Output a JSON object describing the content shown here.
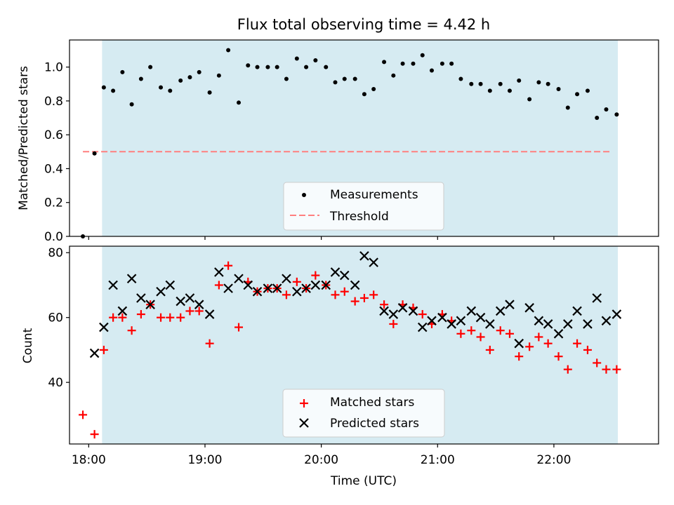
{
  "chart_data": {
    "title": "Flux total observing time = 4.42 h",
    "xlabel": "Time (UTC)",
    "x_unit": "hours since 18:00 UTC",
    "xlim": [
      -0.165,
      4.9
    ],
    "xticks": [
      0,
      1,
      2,
      3,
      4
    ],
    "xtick_labels": [
      "18:00",
      "19:00",
      "20:00",
      "21:00",
      "22:00"
    ],
    "shaded_span": [
      0.115,
      4.55
    ],
    "colors": {
      "span": "#add8e6",
      "threshold": "#ff7f7f",
      "matched": "#ff0000",
      "points": "#000000"
    },
    "top": {
      "type": "scatter",
      "ylabel": "Matched/Predicted stars",
      "ylim": [
        0,
        1.16
      ],
      "yticks": [
        0,
        0.2,
        0.4,
        0.6,
        0.8,
        1.0
      ],
      "ytick_labels": [
        "0.0",
        "0.2",
        "0.4",
        "0.6",
        "0.8",
        "1.0"
      ],
      "threshold": {
        "value": 0.5,
        "x_range": [
          -0.05,
          4.5
        ]
      },
      "legend": [
        "Measurements",
        "Threshold"
      ],
      "x": [
        -0.05,
        0.05,
        0.13,
        0.21,
        0.29,
        0.37,
        0.45,
        0.53,
        0.62,
        0.7,
        0.79,
        0.87,
        0.95,
        1.04,
        1.12,
        1.2,
        1.29,
        1.37,
        1.45,
        1.54,
        1.62,
        1.7,
        1.79,
        1.87,
        1.95,
        2.04,
        2.12,
        2.2,
        2.29,
        2.37,
        2.45,
        2.54,
        2.62,
        2.7,
        2.79,
        2.87,
        2.95,
        3.04,
        3.12,
        3.2,
        3.29,
        3.37,
        3.45,
        3.54,
        3.62,
        3.7,
        3.79,
        3.87,
        3.95,
        4.04,
        4.12,
        4.2,
        4.29,
        4.37,
        4.45,
        4.54
      ],
      "y": [
        0.0,
        0.49,
        0.88,
        0.86,
        0.97,
        0.78,
        0.93,
        1.0,
        0.88,
        0.86,
        0.92,
        0.94,
        0.97,
        0.85,
        0.95,
        1.1,
        0.79,
        1.01,
        1.0,
        1.0,
        1.0,
        0.93,
        1.05,
        1.0,
        1.04,
        1.0,
        0.91,
        0.93,
        0.93,
        0.84,
        0.87,
        1.03,
        0.95,
        1.02,
        1.02,
        1.07,
        0.98,
        1.02,
        1.02,
        0.93,
        0.9,
        0.9,
        0.86,
        0.9,
        0.86,
        0.92,
        0.81,
        0.91,
        0.9,
        0.87,
        0.76,
        0.84,
        0.86,
        0.7,
        0.75,
        0.72
      ]
    },
    "bottom": {
      "type": "scatter",
      "ylabel": "Count",
      "ylim": [
        21,
        82
      ],
      "yticks": [
        40,
        60,
        80
      ],
      "ytick_labels": [
        "40",
        "60",
        "80"
      ],
      "legend": [
        "Matched stars",
        "Predicted stars"
      ],
      "series": [
        {
          "name": "Matched stars",
          "marker": "plus",
          "x": [
            -0.05,
            0.05,
            0.13,
            0.21,
            0.29,
            0.37,
            0.45,
            0.53,
            0.62,
            0.7,
            0.79,
            0.87,
            0.95,
            1.04,
            1.12,
            1.2,
            1.29,
            1.37,
            1.45,
            1.54,
            1.62,
            1.7,
            1.79,
            1.87,
            1.95,
            2.04,
            2.12,
            2.2,
            2.29,
            2.37,
            2.45,
            2.54,
            2.62,
            2.7,
            2.79,
            2.87,
            2.95,
            3.04,
            3.12,
            3.2,
            3.29,
            3.37,
            3.45,
            3.54,
            3.62,
            3.7,
            3.79,
            3.87,
            3.95,
            4.04,
            4.12,
            4.2,
            4.29,
            4.37,
            4.45,
            4.54
          ],
          "y": [
            30,
            24,
            50,
            60,
            60,
            56,
            61,
            64,
            60,
            60,
            60,
            62,
            62,
            52,
            70,
            76,
            57,
            71,
            68,
            69,
            69,
            67,
            71,
            69,
            73,
            70,
            67,
            68,
            65,
            66,
            67,
            64,
            58,
            64,
            63,
            61,
            58,
            61,
            59,
            55,
            56,
            54,
            50,
            56,
            55,
            48,
            51,
            54,
            52,
            48,
            44,
            52,
            50,
            46,
            44,
            44
          ]
        },
        {
          "name": "Predicted stars",
          "marker": "x",
          "x": [
            0.05,
            0.13,
            0.21,
            0.29,
            0.37,
            0.45,
            0.53,
            0.62,
            0.7,
            0.79,
            0.87,
            0.95,
            1.04,
            1.12,
            1.2,
            1.29,
            1.37,
            1.45,
            1.54,
            1.62,
            1.7,
            1.79,
            1.87,
            1.95,
            2.04,
            2.12,
            2.2,
            2.29,
            2.37,
            2.45,
            2.54,
            2.62,
            2.7,
            2.79,
            2.87,
            2.95,
            3.04,
            3.12,
            3.2,
            3.29,
            3.37,
            3.45,
            3.54,
            3.62,
            3.7,
            3.79,
            3.87,
            3.95,
            4.04,
            4.12,
            4.2,
            4.29,
            4.37,
            4.45,
            4.54
          ],
          "y": [
            49,
            57,
            70,
            62,
            72,
            66,
            64,
            68,
            70,
            65,
            66,
            64,
            61,
            74,
            69,
            72,
            70,
            68,
            69,
            69,
            72,
            68,
            69,
            70,
            70,
            74,
            73,
            70,
            79,
            77,
            62,
            61,
            63,
            62,
            57,
            59,
            60,
            58,
            59,
            62,
            60,
            58,
            62,
            64,
            52,
            63,
            59,
            58,
            55,
            58,
            62,
            58,
            66,
            59,
            61
          ]
        }
      ]
    }
  }
}
